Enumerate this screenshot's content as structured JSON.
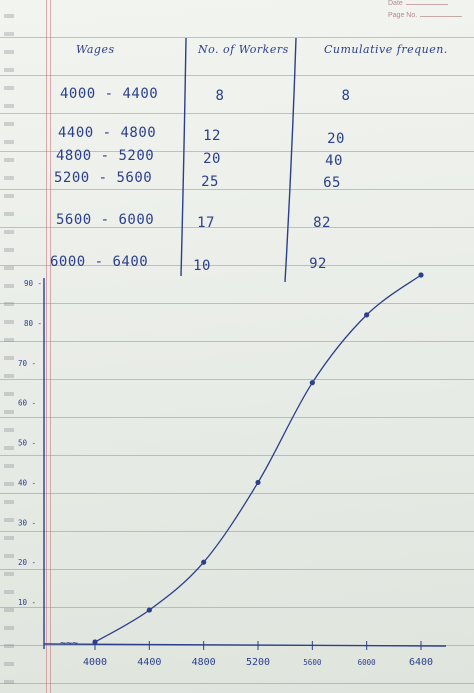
{
  "corner": {
    "date_label": "Date",
    "page_label": "Page No."
  },
  "table": {
    "headers": {
      "wages": "Wages",
      "workers": "No. of Workers",
      "cumulative": "Cumulative frequen."
    },
    "rows": [
      {
        "wages": "4000 - 4400",
        "workers": "8",
        "cumulative": "8"
      },
      {
        "wages": "4400 - 4800",
        "workers": "12",
        "cumulative": "20"
      },
      {
        "wages": "4800 - 5200",
        "workers": "20",
        "cumulative": "40"
      },
      {
        "wages": "5200 - 5600",
        "workers": "25",
        "cumulative": "65"
      },
      {
        "wages": "5600 - 6000",
        "workers": "17",
        "cumulative": "82"
      },
      {
        "wages": "6000 - 6400",
        "workers": "10",
        "cumulative": "92"
      }
    ]
  },
  "chart_data": {
    "type": "line",
    "title": "",
    "xlabel": "",
    "ylabel": "",
    "x_tick_labels": [
      "4000",
      "4400",
      "4800",
      "5200",
      "5600",
      "6000",
      "6400"
    ],
    "y_tick_labels": [
      "10",
      "20",
      "30",
      "40",
      "50",
      "60",
      "70",
      "80",
      "90"
    ],
    "x": [
      4000,
      4400,
      4800,
      5200,
      5600,
      6000,
      6400
    ],
    "values": [
      0,
      8,
      20,
      40,
      65,
      82,
      92
    ],
    "xlim": [
      3950,
      6450
    ],
    "ylim": [
      0,
      92
    ],
    "grid": false,
    "axis_break_symbol": "~~~"
  },
  "ink_color": "#2c3f8a"
}
